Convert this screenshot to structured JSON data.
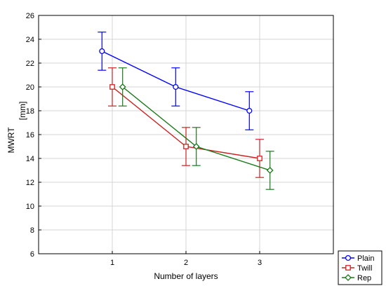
{
  "chart_data": {
    "type": "line",
    "title": "",
    "xlabel": "Number of layers",
    "ylabel": "MWRT",
    "ylabel_unit": "[mm]",
    "x_ticks": [
      "1",
      "2",
      "3"
    ],
    "x_range": [
      0,
      4
    ],
    "ylim": [
      6,
      26
    ],
    "y_ticks": [
      "6",
      "8",
      "10",
      "12",
      "14",
      "16",
      "18",
      "20",
      "22",
      "24",
      "26"
    ],
    "grid": true,
    "legend_position": "bottom-right",
    "series": [
      {
        "name": "Plain",
        "marker": "circle",
        "color": "#0000ff",
        "x": [
          0.86,
          1.86,
          2.86
        ],
        "values": [
          23,
          20,
          18
        ],
        "err_low": [
          21.4,
          18.4,
          16.4
        ],
        "err_high": [
          24.6,
          21.6,
          19.6
        ]
      },
      {
        "name": "Twill",
        "marker": "square",
        "color": "#cc2222",
        "x": [
          1.0,
          2.0,
          3.0
        ],
        "values": [
          20,
          15,
          14
        ],
        "err_low": [
          18.4,
          13.4,
          12.4
        ],
        "err_high": [
          21.6,
          16.6,
          15.6
        ]
      },
      {
        "name": "Rep",
        "marker": "diamond",
        "color": "#1a7a1a",
        "x": [
          1.14,
          2.14,
          3.14
        ],
        "values": [
          20,
          15,
          13
        ],
        "err_low": [
          18.4,
          13.4,
          11.4
        ],
        "err_high": [
          21.6,
          16.6,
          14.6
        ]
      }
    ]
  }
}
